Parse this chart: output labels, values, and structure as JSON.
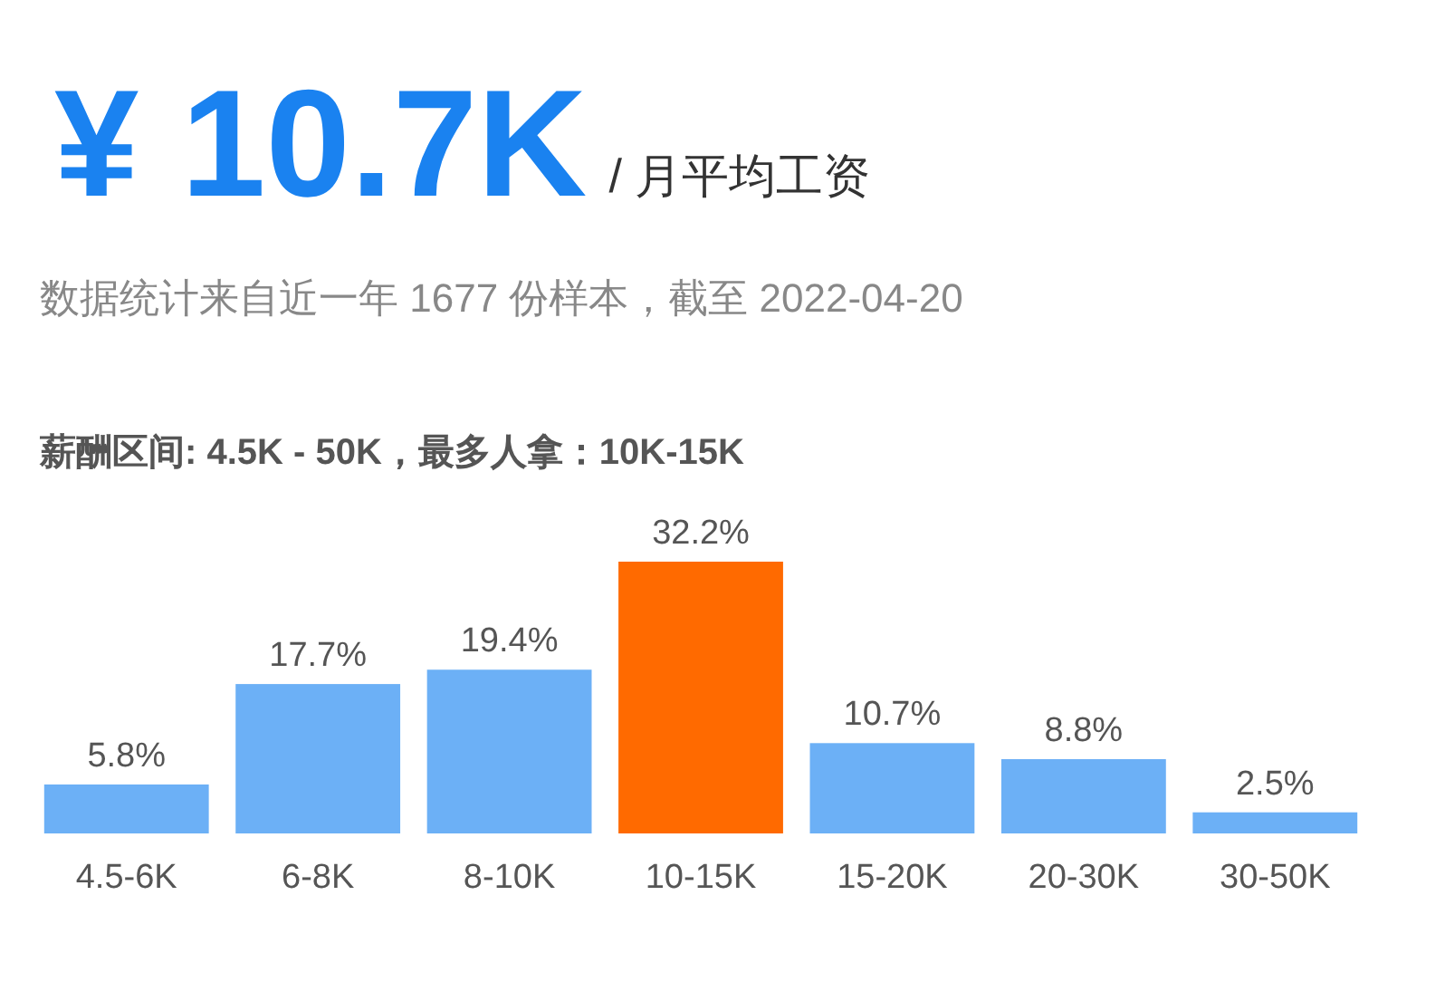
{
  "chart_data": {
    "type": "bar",
    "title": "¥ 10.7K",
    "subtitle": "/ 月平均工资",
    "annotations": [
      "数据统计来自近一年 1677 份样本，截至 2022-04-20",
      "薪酬区间: 4.5K - 50K，最多人拿：10K-15K"
    ],
    "categories": [
      "4.5-6K",
      "6-8K",
      "8-10K",
      "10-15K",
      "15-20K",
      "20-30K",
      "30-50K"
    ],
    "values": [
      5.8,
      17.7,
      19.4,
      32.2,
      10.7,
      8.8,
      2.5
    ],
    "colors": [
      "#6cb0f6",
      "#6cb0f6",
      "#6cb0f6",
      "#ff6a00",
      "#6cb0f6",
      "#6cb0f6",
      "#6cb0f6"
    ],
    "value_labels": [
      "5.8%",
      "17.7%",
      "19.4%",
      "32.2%",
      "10.7%",
      "8.8%",
      "2.5%"
    ]
  }
}
